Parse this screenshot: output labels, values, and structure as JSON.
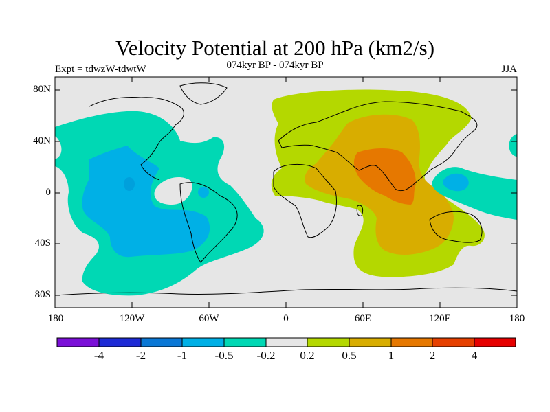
{
  "map": {
    "title": "Velocity Potential at 200 hPa (km2/s)",
    "subtitle": "074kyr BP - 074kyr BP",
    "left_label": "Expt = tdwzW-tdwtW",
    "right_label": "JJA",
    "projection": "cylindrical equidistant",
    "lat_ticks": [
      "80N",
      "40N",
      "0",
      "40S",
      "80S"
    ],
    "lon_ticks": [
      "180",
      "120W",
      "60W",
      "0",
      "60E",
      "120E",
      "180"
    ],
    "background_color": "#e6e6e6",
    "coastline_color": "#000000"
  },
  "colorbar": {
    "labels": [
      "-4",
      "-2",
      "-1",
      "-0.5",
      "-0.2",
      "0.2",
      "0.5",
      "1",
      "2",
      "4"
    ],
    "colors": [
      "#7b10d8",
      "#1e2bd6",
      "#0a78d6",
      "#00b0e6",
      "#00d8b4",
      "#e6e6e6",
      "#b4d800",
      "#d8ad00",
      "#e67800",
      "#e64000",
      "#e60000"
    ]
  },
  "regions": [
    {
      "name": "positive-eurasia-africa",
      "level": "0.2",
      "color": "#b4d800"
    },
    {
      "name": "positive-core-asia",
      "level": "0.5",
      "color": "#d8ad00"
    },
    {
      "name": "positive-peak-south-asia",
      "level": "1",
      "color": "#e67800"
    },
    {
      "name": "negative-americas-pacific",
      "level": "-0.2",
      "color": "#00d8b4"
    },
    {
      "name": "negative-core-east-pacific",
      "level": "-0.5",
      "color": "#00b0e6"
    },
    {
      "name": "negative-west-pacific",
      "level": "-0.2",
      "color": "#00d8b4"
    }
  ]
}
